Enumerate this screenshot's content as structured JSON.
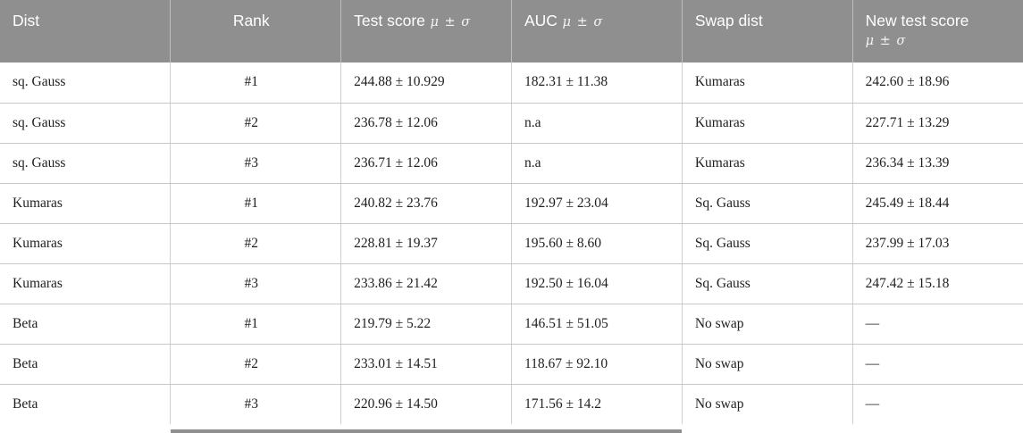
{
  "table": {
    "columns": [
      {
        "id": "dist",
        "label": "Dist",
        "math": "",
        "align": "left",
        "math_block": false
      },
      {
        "id": "rank",
        "label": "Rank",
        "math": "",
        "align": "center",
        "math_block": false
      },
      {
        "id": "test-score",
        "label": "Test score",
        "math": "μ ± σ",
        "align": "left",
        "math_block": false
      },
      {
        "id": "auc",
        "label": "AUC",
        "math": "μ ± σ",
        "align": "left",
        "math_block": false
      },
      {
        "id": "swap-dist",
        "label": "Swap dist",
        "math": "",
        "align": "left",
        "math_block": false
      },
      {
        "id": "new-test-score",
        "label": "New test score",
        "math": "μ ± σ",
        "align": "left",
        "math_block": true
      }
    ],
    "rows": [
      [
        "sq. Gauss",
        "#1",
        "244.88 ± 10.929",
        "182.31 ± 11.38",
        "Kumaras",
        "242.60 ± 18.96"
      ],
      [
        "sq. Gauss",
        "#2",
        "236.78 ± 12.06",
        "n.a",
        "Kumaras",
        "227.71 ± 13.29"
      ],
      [
        "sq. Gauss",
        "#3",
        "236.71 ± 12.06",
        "n.a",
        "Kumaras",
        "236.34 ± 13.39"
      ],
      [
        "Kumaras",
        "#1",
        "240.82 ± 23.76",
        "192.97 ± 23.04",
        "Sq. Gauss",
        "245.49 ± 18.44"
      ],
      [
        "Kumaras",
        "#2",
        "228.81 ± 19.37",
        "195.60 ± 8.60",
        "Sq. Gauss",
        "237.99 ± 17.03"
      ],
      [
        "Kumaras",
        "#3",
        "233.86 ± 21.42",
        "192.50 ± 16.04",
        "Sq. Gauss",
        "247.42 ± 15.18"
      ],
      [
        "Beta",
        "#1",
        "219.79 ± 5.22",
        "146.51 ± 51.05",
        "No swap",
        "—"
      ],
      [
        "Beta",
        "#2",
        "233.01 ± 14.51",
        "118.67 ± 92.10",
        "No swap",
        "—"
      ],
      [
        "Beta",
        "#3",
        "220.96 ± 14.50",
        "171.56 ± 14.2",
        "No swap",
        "—"
      ]
    ],
    "colors": {
      "header_bg": "#8f8f8f",
      "header_text": "#ffffff",
      "row_border": "#c6c6c6",
      "column_border": "#cfcfcf",
      "body_text": "#1f1f1f"
    }
  }
}
